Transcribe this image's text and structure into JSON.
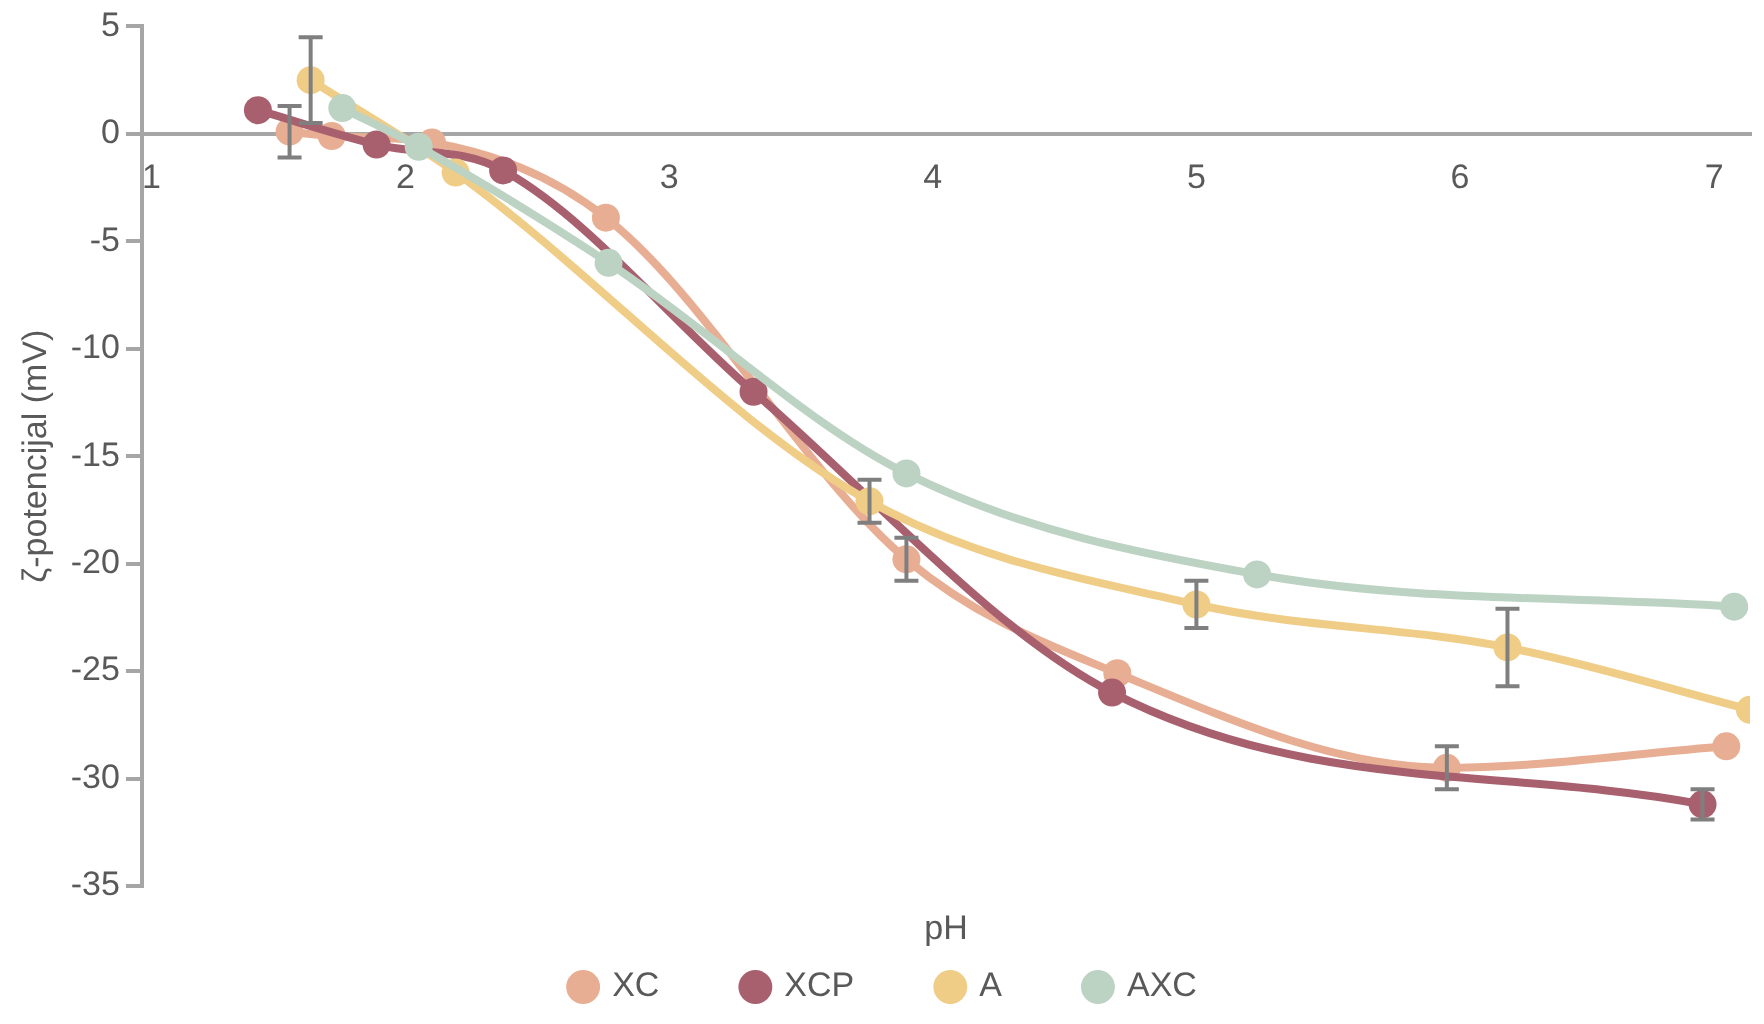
{
  "chart_data": {
    "type": "line",
    "xlabel": "pH",
    "ylabel": "ζ-potencijal (mV)",
    "xlim": [
      1,
      7.1
    ],
    "xticks": [
      1,
      2,
      3,
      4,
      5,
      6,
      7
    ],
    "ylim": [
      -35,
      5
    ],
    "yticks": [
      -35,
      -30,
      -25,
      -20,
      -15,
      -10,
      -5,
      0,
      5
    ],
    "grid": false,
    "legend": "bottom",
    "marker": "circle",
    "line_style": "solid",
    "series": [
      {
        "name": "XC",
        "color": "#e8ae93",
        "x": [
          1.56,
          1.72,
          2.1,
          2.76,
          3.9,
          4.7,
          5.95,
          7.01
        ],
        "values": [
          0.1,
          -0.1,
          -0.4,
          -3.9,
          -19.8,
          -25.1,
          -29.5,
          -28.5
        ],
        "errors": [
          1.2,
          null,
          null,
          null,
          1,
          null,
          1,
          null
        ]
      },
      {
        "name": "XCP",
        "color": "#a8606f",
        "x": [
          1.44,
          1.89,
          2.37,
          3.32,
          4.68,
          6.92
        ],
        "values": [
          1.1,
          -0.5,
          -1.7,
          -12,
          -26,
          -31.2
        ],
        "errors": [
          null,
          null,
          null,
          null,
          null,
          0.7
        ]
      },
      {
        "name": "A",
        "color": "#f0cd87",
        "x": [
          1.64,
          2.19,
          3.76,
          5,
          6.18,
          7.1
        ],
        "values": [
          2.5,
          -1.8,
          -17.1,
          -21.9,
          -23.9,
          -26.8
        ],
        "errors": [
          2,
          null,
          1,
          1.1,
          1.8,
          null
        ]
      },
      {
        "name": "AXC",
        "color": "#bcd3c4",
        "x": [
          1.76,
          2.05,
          2.77,
          3.9,
          5.23,
          7.04
        ],
        "values": [
          1.2,
          -0.6,
          -6,
          -15.8,
          -20.5,
          -22
        ]
      }
    ]
  }
}
